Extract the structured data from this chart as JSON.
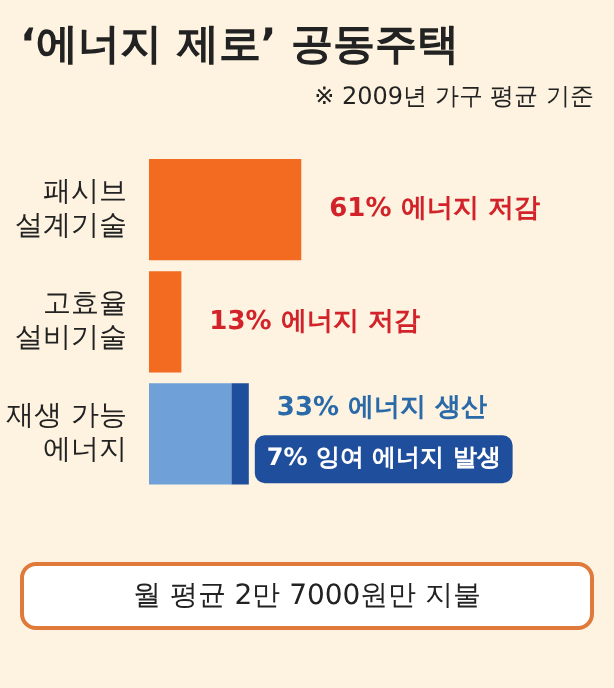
{
  "chart_data": {
    "type": "bar",
    "orientation": "horizontal",
    "stacked": true,
    "title": "‘에너지 제로’ 공동주택",
    "subtitle": "※ 2009년 가구 평균 기준",
    "categories": [
      "패시브\n설계기술",
      "고효율\n설비기술",
      "재생 가능\n에너지"
    ],
    "series": [
      {
        "colors": [
          "#f26b21",
          "#f26b21",
          "#6fa0d8"
        ],
        "values": [
          61,
          13,
          33
        ],
        "value_labels": [
          "61% 에너지 저감",
          "13% 에너지 저감",
          "33% 에너지 생산"
        ]
      },
      {
        "color": "#1f4e9c",
        "values": [
          null,
          null,
          7
        ],
        "value_labels": [
          null,
          null,
          "7% 잉여 에너지 발생"
        ]
      }
    ],
    "annotations": [
      "월 평균 2만 7000원만 지불"
    ],
    "legend": false,
    "tick_labels": false
  }
}
